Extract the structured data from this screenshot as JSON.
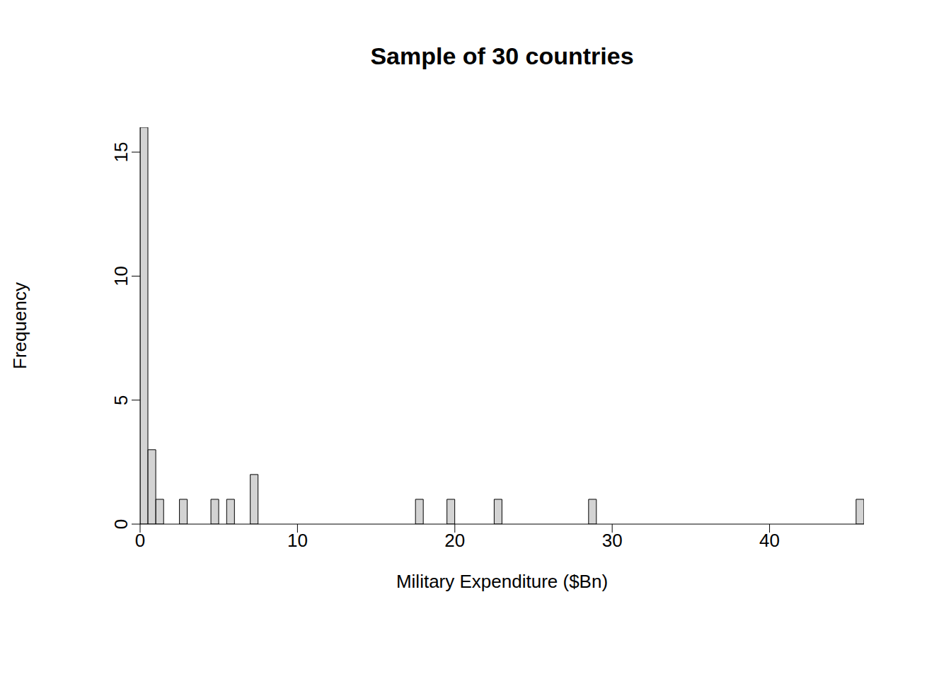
{
  "chart_data": {
    "type": "histogram",
    "title": "Sample of 30 countries",
    "xlabel": "Military Expenditure ($Bn)",
    "ylabel": "Frequency",
    "bins": [
      0,
      0.5,
      1,
      1.5,
      2,
      2.5,
      3,
      3.5,
      4,
      4.5,
      5,
      5.5,
      6,
      6.5,
      7,
      7.5,
      8,
      8.5,
      9,
      9.5,
      10,
      10.5,
      11,
      11.5,
      12,
      12.5,
      13,
      13.5,
      14,
      14.5,
      15,
      15.5,
      16,
      16.5,
      17,
      17.5,
      18,
      18.5,
      19,
      19.5,
      20,
      20.5,
      21,
      21.5,
      22,
      22.5,
      23,
      23.5,
      24,
      24.5,
      25,
      25.5,
      26,
      26.5,
      27,
      27.5,
      28,
      28.5,
      29,
      29.5,
      30,
      30.5,
      31,
      31.5,
      32,
      32.5,
      33,
      33.5,
      34,
      34.5,
      35,
      35.5,
      36,
      36.5,
      37,
      37.5,
      38,
      38.5,
      39,
      39.5,
      40,
      40.5,
      41,
      41.5,
      42,
      42.5,
      43,
      43.5,
      44,
      44.5,
      45,
      45.5,
      46
    ],
    "counts": [
      16,
      3,
      1,
      0,
      0,
      1,
      0,
      0,
      0,
      1,
      0,
      1,
      0,
      0,
      2,
      0,
      0,
      0,
      0,
      0,
      0,
      0,
      0,
      0,
      0,
      0,
      0,
      0,
      0,
      0,
      0,
      0,
      0,
      0,
      0,
      1,
      0,
      0,
      0,
      1,
      0,
      0,
      0,
      0,
      0,
      1,
      0,
      0,
      0,
      0,
      0,
      0,
      0,
      0,
      0,
      0,
      0,
      1,
      0,
      0,
      0,
      0,
      0,
      0,
      0,
      0,
      0,
      0,
      0,
      0,
      0,
      0,
      0,
      0,
      0,
      0,
      0,
      0,
      0,
      0,
      0,
      0,
      0,
      0,
      0,
      0,
      0,
      0,
      0,
      0,
      0,
      1
    ],
    "color": "#d3d3d3",
    "xlim": [
      0,
      46
    ],
    "xticks": [
      0,
      10,
      20,
      30,
      40
    ],
    "ylim": [
      0,
      16
    ],
    "yticks": [
      0,
      5,
      10,
      15
    ]
  }
}
